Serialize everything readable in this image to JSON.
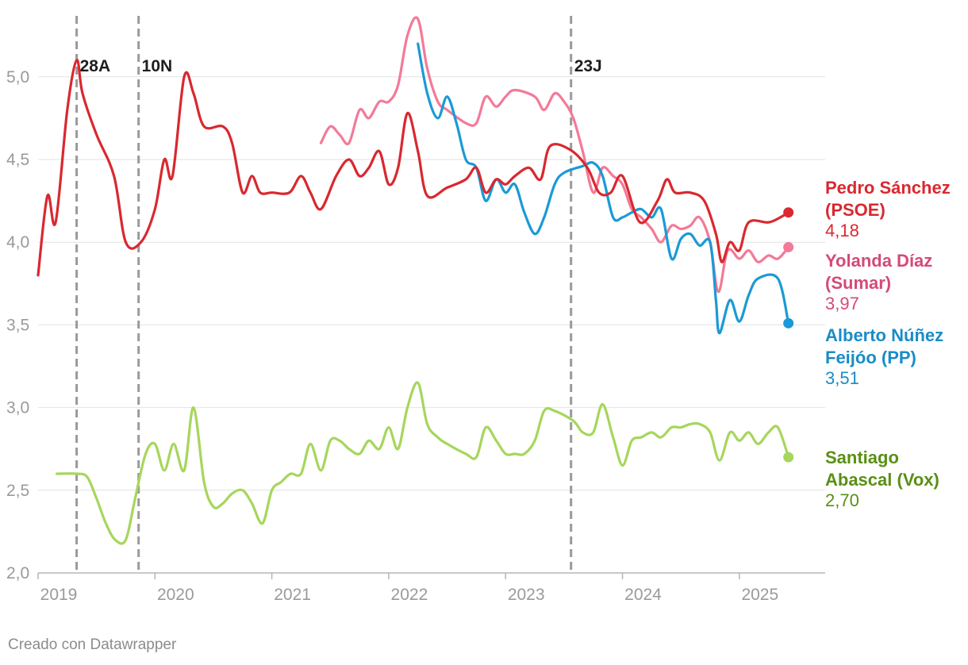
{
  "chart_data": {
    "type": "line",
    "title": "",
    "xlabel": "",
    "ylabel": "",
    "xlim": [
      2019,
      2025.65
    ],
    "ylim": [
      2.0,
      5.35
    ],
    "yticks": [
      2.0,
      2.5,
      3.0,
      3.5,
      4.0,
      4.5,
      5.0
    ],
    "ytick_labels": [
      "2,0",
      "2,5",
      "3,0",
      "3,5",
      "4,0",
      "4,5",
      "5,0"
    ],
    "xticks": [
      2019,
      2020,
      2021,
      2022,
      2023,
      2024,
      2025
    ],
    "xtick_labels": [
      "2019",
      "2020",
      "2021",
      "2022",
      "2023",
      "2024",
      "2025"
    ],
    "grid": true,
    "events": [
      {
        "x": 2019.33,
        "label": "28A"
      },
      {
        "x": 2019.86,
        "label": "10N"
      },
      {
        "x": 2023.56,
        "label": "23J"
      }
    ],
    "series": [
      {
        "name": "Pedro Sánchez (PSOE)",
        "name_lines": [
          "Pedro Sánchez",
          "(PSOE)"
        ],
        "value_label": "4,18",
        "color": "#d9282f",
        "label_color": "#d9282f",
        "points": [
          [
            2019.0,
            3.8
          ],
          [
            2019.08,
            4.28
          ],
          [
            2019.15,
            4.12
          ],
          [
            2019.25,
            4.8
          ],
          [
            2019.33,
            5.1
          ],
          [
            2019.38,
            4.9
          ],
          [
            2019.5,
            4.65
          ],
          [
            2019.65,
            4.4
          ],
          [
            2019.75,
            4.0
          ],
          [
            2019.88,
            4.0
          ],
          [
            2020.0,
            4.2
          ],
          [
            2020.08,
            4.5
          ],
          [
            2020.15,
            4.4
          ],
          [
            2020.25,
            5.0
          ],
          [
            2020.33,
            4.9
          ],
          [
            2020.42,
            4.7
          ],
          [
            2020.58,
            4.7
          ],
          [
            2020.66,
            4.6
          ],
          [
            2020.75,
            4.3
          ],
          [
            2020.83,
            4.4
          ],
          [
            2020.9,
            4.3
          ],
          [
            2021.0,
            4.3
          ],
          [
            2021.15,
            4.3
          ],
          [
            2021.25,
            4.4
          ],
          [
            2021.33,
            4.3
          ],
          [
            2021.42,
            4.2
          ],
          [
            2021.55,
            4.4
          ],
          [
            2021.66,
            4.5
          ],
          [
            2021.75,
            4.4
          ],
          [
            2021.83,
            4.45
          ],
          [
            2021.92,
            4.55
          ],
          [
            2022.0,
            4.35
          ],
          [
            2022.08,
            4.45
          ],
          [
            2022.16,
            4.78
          ],
          [
            2022.25,
            4.55
          ],
          [
            2022.33,
            4.28
          ],
          [
            2022.5,
            4.33
          ],
          [
            2022.66,
            4.38
          ],
          [
            2022.75,
            4.45
          ],
          [
            2022.83,
            4.3
          ],
          [
            2022.92,
            4.38
          ],
          [
            2023.0,
            4.35
          ],
          [
            2023.08,
            4.4
          ],
          [
            2023.2,
            4.45
          ],
          [
            2023.3,
            4.38
          ],
          [
            2023.38,
            4.58
          ],
          [
            2023.55,
            4.56
          ],
          [
            2023.7,
            4.45
          ],
          [
            2023.8,
            4.3
          ],
          [
            2023.9,
            4.3
          ],
          [
            2024.0,
            4.4
          ],
          [
            2024.15,
            4.12
          ],
          [
            2024.3,
            4.25
          ],
          [
            2024.38,
            4.38
          ],
          [
            2024.45,
            4.3
          ],
          [
            2024.58,
            4.3
          ],
          [
            2024.7,
            4.25
          ],
          [
            2024.8,
            4.05
          ],
          [
            2024.85,
            3.88
          ],
          [
            2024.92,
            4.0
          ],
          [
            2025.0,
            3.95
          ],
          [
            2025.08,
            4.12
          ],
          [
            2025.25,
            4.12
          ],
          [
            2025.35,
            4.15
          ],
          [
            2025.42,
            4.18
          ]
        ]
      },
      {
        "name": "Yolanda Díaz (Sumar)",
        "name_lines": [
          "Yolanda Díaz",
          "(Sumar)"
        ],
        "value_label": "3,97",
        "color": "#f37a98",
        "label_color": "#d44a78",
        "points": [
          [
            2021.42,
            4.6
          ],
          [
            2021.5,
            4.7
          ],
          [
            2021.58,
            4.65
          ],
          [
            2021.66,
            4.6
          ],
          [
            2021.75,
            4.8
          ],
          [
            2021.83,
            4.75
          ],
          [
            2021.92,
            4.85
          ],
          [
            2022.0,
            4.85
          ],
          [
            2022.08,
            4.95
          ],
          [
            2022.16,
            5.25
          ],
          [
            2022.25,
            5.35
          ],
          [
            2022.33,
            5.05
          ],
          [
            2022.42,
            4.85
          ],
          [
            2022.5,
            4.8
          ],
          [
            2022.66,
            4.72
          ],
          [
            2022.75,
            4.72
          ],
          [
            2022.83,
            4.88
          ],
          [
            2022.92,
            4.82
          ],
          [
            2023.0,
            4.88
          ],
          [
            2023.08,
            4.92
          ],
          [
            2023.25,
            4.88
          ],
          [
            2023.33,
            4.8
          ],
          [
            2023.42,
            4.9
          ],
          [
            2023.5,
            4.85
          ],
          [
            2023.58,
            4.75
          ],
          [
            2023.66,
            4.55
          ],
          [
            2023.75,
            4.3
          ],
          [
            2023.83,
            4.45
          ],
          [
            2023.92,
            4.4
          ],
          [
            2024.0,
            4.35
          ],
          [
            2024.08,
            4.2
          ],
          [
            2024.16,
            4.15
          ],
          [
            2024.25,
            4.08
          ],
          [
            2024.33,
            4.0
          ],
          [
            2024.42,
            4.1
          ],
          [
            2024.5,
            4.08
          ],
          [
            2024.58,
            4.1
          ],
          [
            2024.66,
            4.15
          ],
          [
            2024.75,
            4.0
          ],
          [
            2024.82,
            3.7
          ],
          [
            2024.9,
            3.95
          ],
          [
            2025.0,
            3.9
          ],
          [
            2025.08,
            3.95
          ],
          [
            2025.16,
            3.88
          ],
          [
            2025.25,
            3.92
          ],
          [
            2025.33,
            3.9
          ],
          [
            2025.42,
            3.97
          ]
        ]
      },
      {
        "name": "Alberto Núñez Feijóo (PP)",
        "name_lines": [
          "Alberto Núñez",
          "Feijóo (PP)"
        ],
        "value_label": "3,51",
        "color": "#1a9ad6",
        "label_color": "#1a8cc6",
        "points": [
          [
            2022.25,
            5.2
          ],
          [
            2022.33,
            4.9
          ],
          [
            2022.42,
            4.75
          ],
          [
            2022.5,
            4.88
          ],
          [
            2022.58,
            4.72
          ],
          [
            2022.66,
            4.5
          ],
          [
            2022.75,
            4.45
          ],
          [
            2022.83,
            4.25
          ],
          [
            2022.92,
            4.38
          ],
          [
            2023.0,
            4.3
          ],
          [
            2023.08,
            4.35
          ],
          [
            2023.16,
            4.18
          ],
          [
            2023.25,
            4.05
          ],
          [
            2023.33,
            4.15
          ],
          [
            2023.42,
            4.35
          ],
          [
            2023.5,
            4.42
          ],
          [
            2023.66,
            4.46
          ],
          [
            2023.75,
            4.48
          ],
          [
            2023.83,
            4.4
          ],
          [
            2023.92,
            4.15
          ],
          [
            2024.0,
            4.15
          ],
          [
            2024.08,
            4.18
          ],
          [
            2024.16,
            4.2
          ],
          [
            2024.25,
            4.15
          ],
          [
            2024.33,
            4.2
          ],
          [
            2024.42,
            3.9
          ],
          [
            2024.5,
            4.02
          ],
          [
            2024.58,
            4.05
          ],
          [
            2024.66,
            3.98
          ],
          [
            2024.75,
            4.0
          ],
          [
            2024.8,
            3.65
          ],
          [
            2024.83,
            3.45
          ],
          [
            2024.92,
            3.65
          ],
          [
            2025.0,
            3.52
          ],
          [
            2025.08,
            3.68
          ],
          [
            2025.16,
            3.78
          ],
          [
            2025.33,
            3.78
          ],
          [
            2025.42,
            3.51
          ]
        ]
      },
      {
        "name": "Santiago Abascal (Vox)",
        "name_lines": [
          "Santiago",
          "Abascal (Vox)"
        ],
        "value_label": "2,70",
        "color": "#a6d65c",
        "label_color": "#5a8f14",
        "points": [
          [
            2019.16,
            2.6
          ],
          [
            2019.33,
            2.6
          ],
          [
            2019.42,
            2.58
          ],
          [
            2019.5,
            2.45
          ],
          [
            2019.58,
            2.3
          ],
          [
            2019.66,
            2.2
          ],
          [
            2019.75,
            2.2
          ],
          [
            2019.83,
            2.45
          ],
          [
            2019.92,
            2.72
          ],
          [
            2020.0,
            2.78
          ],
          [
            2020.08,
            2.62
          ],
          [
            2020.16,
            2.78
          ],
          [
            2020.25,
            2.62
          ],
          [
            2020.33,
            3.0
          ],
          [
            2020.42,
            2.55
          ],
          [
            2020.5,
            2.4
          ],
          [
            2020.58,
            2.42
          ],
          [
            2020.66,
            2.48
          ],
          [
            2020.75,
            2.5
          ],
          [
            2020.83,
            2.42
          ],
          [
            2020.92,
            2.3
          ],
          [
            2021.0,
            2.5
          ],
          [
            2021.08,
            2.55
          ],
          [
            2021.16,
            2.6
          ],
          [
            2021.25,
            2.6
          ],
          [
            2021.33,
            2.78
          ],
          [
            2021.42,
            2.62
          ],
          [
            2021.5,
            2.8
          ],
          [
            2021.58,
            2.8
          ],
          [
            2021.66,
            2.75
          ],
          [
            2021.75,
            2.72
          ],
          [
            2021.83,
            2.8
          ],
          [
            2021.92,
            2.75
          ],
          [
            2022.0,
            2.88
          ],
          [
            2022.08,
            2.75
          ],
          [
            2022.16,
            3.0
          ],
          [
            2022.25,
            3.15
          ],
          [
            2022.33,
            2.9
          ],
          [
            2022.42,
            2.82
          ],
          [
            2022.5,
            2.78
          ],
          [
            2022.66,
            2.72
          ],
          [
            2022.75,
            2.7
          ],
          [
            2022.83,
            2.88
          ],
          [
            2022.92,
            2.8
          ],
          [
            2023.0,
            2.72
          ],
          [
            2023.08,
            2.72
          ],
          [
            2023.16,
            2.72
          ],
          [
            2023.25,
            2.8
          ],
          [
            2023.33,
            2.98
          ],
          [
            2023.42,
            2.98
          ],
          [
            2023.58,
            2.92
          ],
          [
            2023.66,
            2.85
          ],
          [
            2023.75,
            2.85
          ],
          [
            2023.83,
            3.02
          ],
          [
            2023.92,
            2.82
          ],
          [
            2024.0,
            2.65
          ],
          [
            2024.08,
            2.8
          ],
          [
            2024.16,
            2.82
          ],
          [
            2024.25,
            2.85
          ],
          [
            2024.33,
            2.82
          ],
          [
            2024.42,
            2.88
          ],
          [
            2024.5,
            2.88
          ],
          [
            2024.58,
            2.9
          ],
          [
            2024.66,
            2.9
          ],
          [
            2024.75,
            2.85
          ],
          [
            2024.83,
            2.68
          ],
          [
            2024.92,
            2.85
          ],
          [
            2025.0,
            2.8
          ],
          [
            2025.08,
            2.85
          ],
          [
            2025.16,
            2.78
          ],
          [
            2025.25,
            2.85
          ],
          [
            2025.33,
            2.88
          ],
          [
            2025.42,
            2.7
          ]
        ]
      }
    ]
  },
  "credit": "Creado con Datawrapper"
}
